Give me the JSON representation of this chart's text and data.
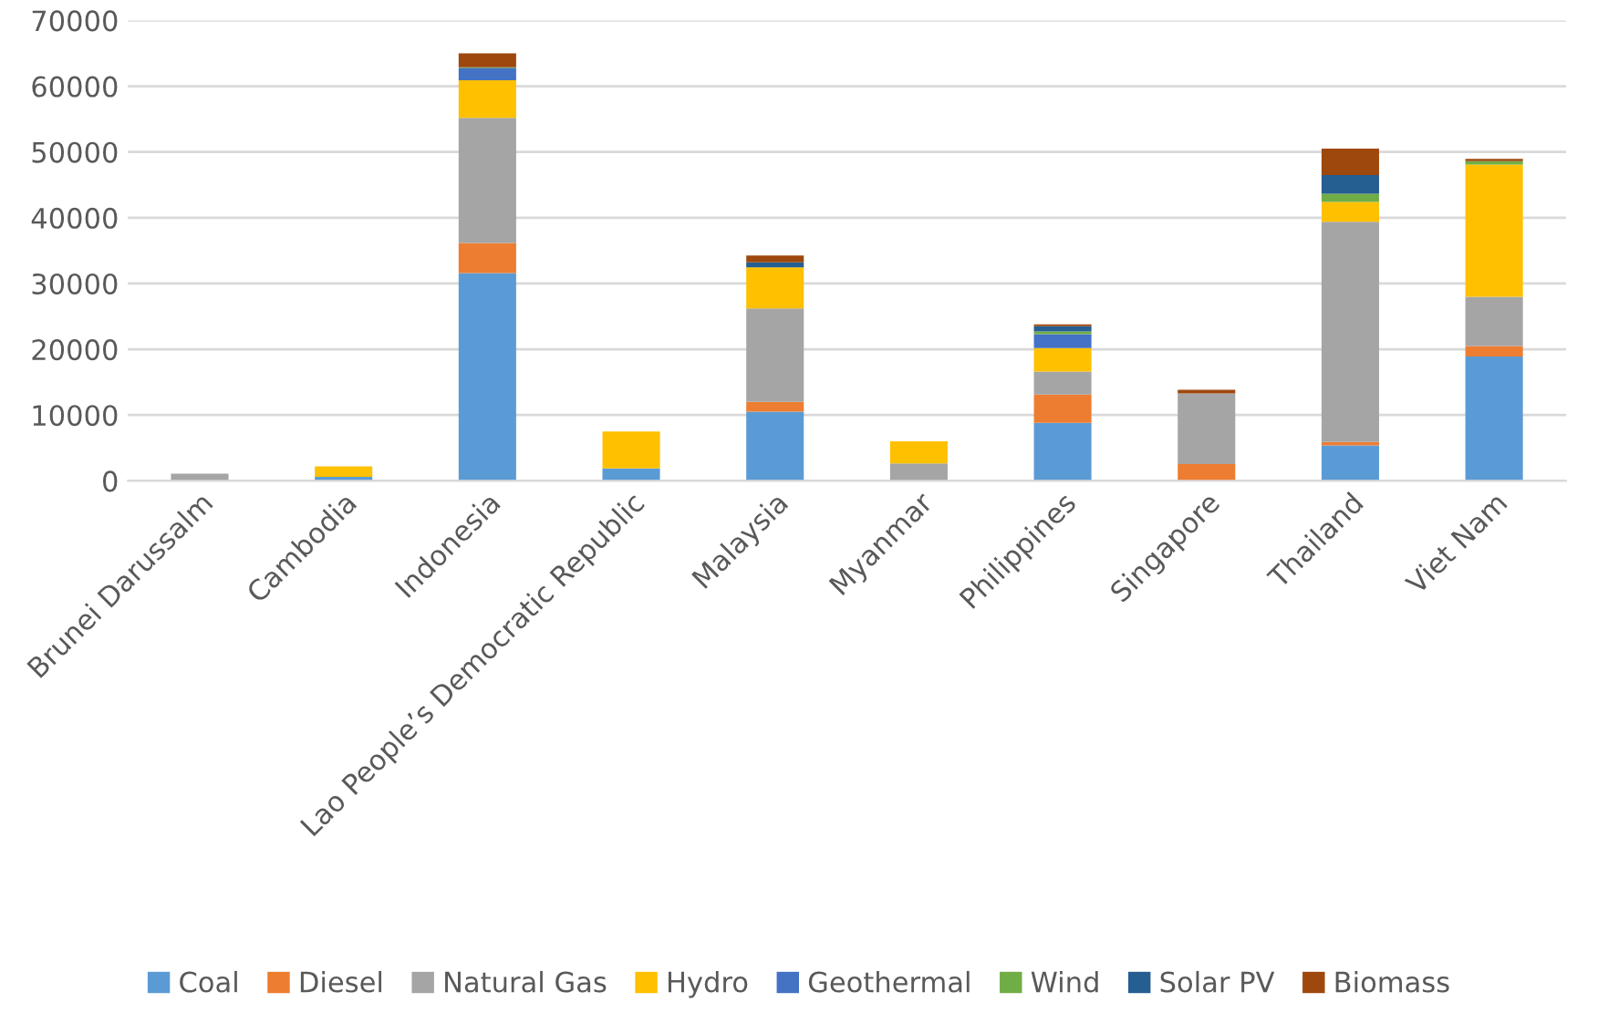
{
  "chart_data": {
    "type": "bar",
    "stacked": true,
    "categories": [
      "Brunei Darussalm",
      "Cambodia",
      "Indonesia",
      "Lao People’s Democratic Republic",
      "Malaysia",
      "Myanmar",
      "Philippines",
      "Singapore",
      "Thailand",
      "Viet Nam"
    ],
    "series": [
      {
        "name": "Coal",
        "color": "#5b9bd5",
        "values": [
          0,
          600,
          31600,
          1900,
          10500,
          0,
          8800,
          0,
          5400,
          18900
        ]
      },
      {
        "name": "Diesel",
        "color": "#ed7d31",
        "values": [
          0,
          0,
          4550,
          0,
          1500,
          0,
          4300,
          2550,
          500,
          1600
        ]
      },
      {
        "name": "Natural Gas",
        "color": "#a5a5a5",
        "values": [
          1100,
          0,
          19050,
          0,
          14200,
          2650,
          3500,
          10750,
          33500,
          7500
        ]
      },
      {
        "name": "Hydro",
        "color": "#ffc000",
        "values": [
          0,
          1600,
          5700,
          5600,
          6250,
          3350,
          3600,
          0,
          3000,
          20100
        ]
      },
      {
        "name": "Geothermal",
        "color": "#4472c4",
        "values": [
          0,
          0,
          1800,
          0,
          0,
          0,
          2100,
          0,
          0,
          0
        ]
      },
      {
        "name": "Wind",
        "color": "#70ad47",
        "values": [
          0,
          0,
          100,
          0,
          0,
          0,
          400,
          0,
          1250,
          500
        ]
      },
      {
        "name": "Solar PV",
        "color": "#255e91",
        "values": [
          0,
          0,
          100,
          0,
          750,
          0,
          800,
          0,
          2850,
          0
        ]
      },
      {
        "name": "Biomass",
        "color": "#9e480e",
        "values": [
          0,
          0,
          2100,
          0,
          1050,
          0,
          300,
          550,
          4000,
          350
        ]
      }
    ],
    "ylim": [
      0,
      70000
    ],
    "yticks": [
      0,
      10000,
      20000,
      30000,
      40000,
      50000,
      60000,
      70000
    ],
    "grid": "y",
    "legend": "bottom"
  }
}
